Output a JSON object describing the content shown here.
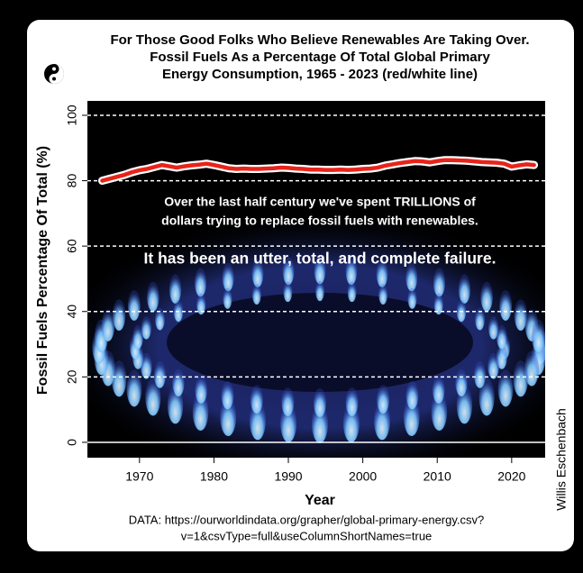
{
  "chart_data": {
    "type": "line",
    "title": [
      "For Those Good Folks Who Believe Renewables Are Taking Over.",
      "Fossil Fuels As a Percentage Of Total Global Primary",
      "Energy Consumption, 1965 - 2023 (red/white line)"
    ],
    "annotations": [
      "Over the last half century we've spent TRILLIONS of",
      "dollars trying to replace fossil fuels with renewables.",
      "It has been an utter, total, and complete failure."
    ],
    "source": [
      "DATA: https://ourworldindata.org/grapher/global-primary-energy.csv?",
      "v=1&csvType=full&useColumnShortNames=true"
    ],
    "credit": "Willis Eschenbach",
    "x_label": "Year",
    "y_label": "Fossil Fuels Percentage Of Total (%)",
    "x": [
      1965,
      1966,
      1967,
      1968,
      1969,
      1970,
      1971,
      1972,
      1973,
      1974,
      1975,
      1976,
      1977,
      1978,
      1979,
      1980,
      1981,
      1982,
      1983,
      1984,
      1985,
      1986,
      1987,
      1988,
      1989,
      1990,
      1991,
      1992,
      1993,
      1994,
      1995,
      1996,
      1997,
      1998,
      1999,
      2000,
      2001,
      2002,
      2003,
      2004,
      2005,
      2006,
      2007,
      2008,
      2009,
      2010,
      2011,
      2012,
      2013,
      2014,
      2015,
      2016,
      2017,
      2018,
      2019,
      2020,
      2021,
      2022,
      2023
    ],
    "series": [
      {
        "color": "#e8231a",
        "values": [
          80.0,
          80.6,
          81.2,
          81.8,
          82.6,
          83.2,
          83.6,
          84.2,
          84.8,
          84.4,
          84.0,
          84.4,
          84.7,
          84.9,
          85.2,
          84.8,
          84.3,
          83.8,
          83.6,
          83.7,
          83.6,
          83.6,
          83.7,
          83.8,
          84.0,
          83.9,
          83.7,
          83.6,
          83.4,
          83.4,
          83.3,
          83.3,
          83.4,
          83.3,
          83.4,
          83.6,
          83.7,
          84.0,
          84.6,
          85.0,
          85.4,
          85.7,
          86.0,
          85.9,
          85.6,
          86.0,
          86.3,
          86.3,
          86.2,
          86.1,
          85.9,
          85.7,
          85.6,
          85.5,
          85.2,
          84.3,
          84.7,
          85.0,
          84.8
        ]
      }
    ],
    "xlim": [
      1963,
      2024.5
    ],
    "xticks": [
      1970,
      1980,
      1990,
      2000,
      2010,
      2020
    ],
    "ylim": [
      -4.7,
      104.4
    ],
    "yticks": [
      0,
      20,
      40,
      60,
      80,
      100
    ],
    "grid": true
  }
}
